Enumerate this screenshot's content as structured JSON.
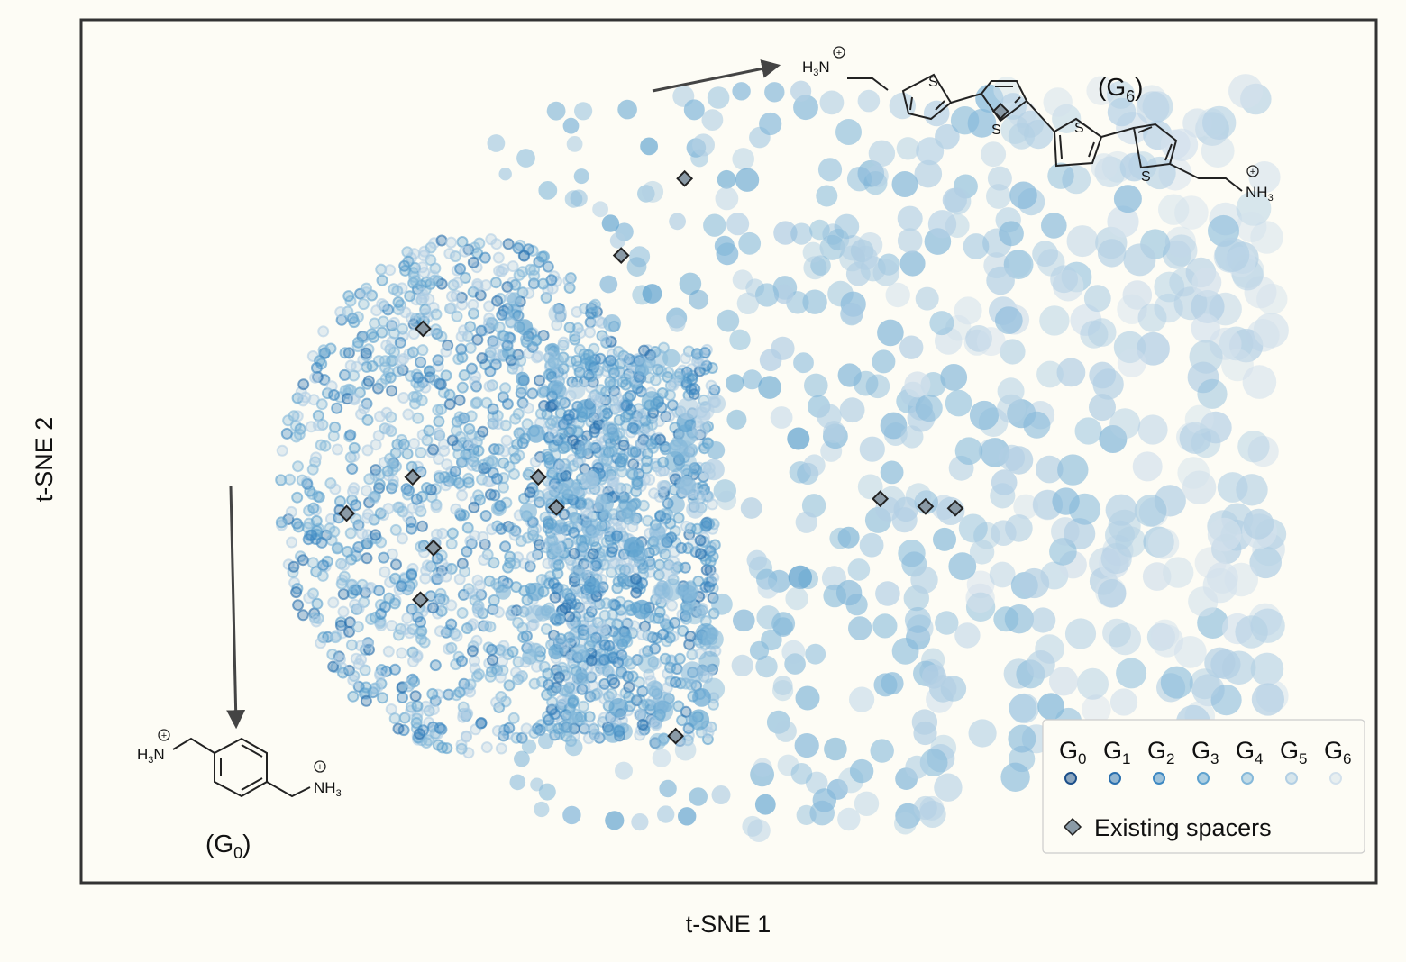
{
  "chart_data": {
    "type": "scatter",
    "xlabel": "t-SNE 1",
    "ylabel": "t-SNE 2",
    "grid": false,
    "legend_position": "bottom-right",
    "generations": [
      {
        "name": "G",
        "sub": "0",
        "color": "#1c4f8a"
      },
      {
        "name": "G",
        "sub": "1",
        "color": "#2a6fae"
      },
      {
        "name": "G",
        "sub": "2",
        "color": "#3d88c2"
      },
      {
        "name": "G",
        "sub": "3",
        "color": "#5ea2cf"
      },
      {
        "name": "G",
        "sub": "4",
        "color": "#86b9da"
      },
      {
        "name": "G",
        "sub": "5",
        "color": "#b2cfe4"
      },
      {
        "name": "G",
        "sub": "6",
        "color": "#d3e1ec"
      }
    ],
    "existing_spacers_label": "Existing spacers",
    "existing_spacers": [
      [
        0.256,
        0.53
      ],
      [
        0.353,
        0.53
      ],
      [
        0.367,
        0.565
      ],
      [
        0.205,
        0.572
      ],
      [
        0.272,
        0.612
      ],
      [
        0.262,
        0.672
      ],
      [
        0.264,
        0.358
      ],
      [
        0.417,
        0.273
      ],
      [
        0.466,
        0.184
      ],
      [
        0.71,
        0.106
      ],
      [
        0.617,
        0.555
      ],
      [
        0.652,
        0.564
      ],
      [
        0.675,
        0.566
      ],
      [
        0.459,
        0.83
      ]
    ],
    "annotations": {
      "g0_label": {
        "name": "G",
        "sub": "0"
      },
      "g6_label": {
        "name": "G",
        "sub": "6"
      }
    }
  },
  "molecule_labels": {
    "h3n": "H",
    "h3n_sub": "3",
    "h3n_n": "N",
    "nh3": "NH",
    "nh3_sub": "3",
    "plus": "+",
    "s": "S"
  },
  "colors": {
    "background": "#fdfcf5",
    "frame": "#333333",
    "marker_edge": "#222222",
    "spacer_fill": "#8a9aa6"
  }
}
